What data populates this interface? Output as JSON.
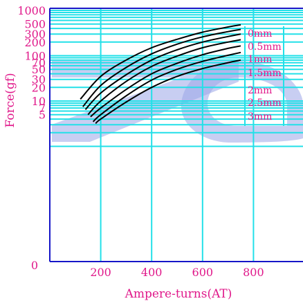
{
  "chart_data": {
    "type": "line",
    "title": "",
    "xlabel": "Ampere-turns(AT)",
    "ylabel": "Force(gf)",
    "xlim": [
      0,
      1000
    ],
    "x_scale": "linear",
    "y_scale": "log",
    "grid": true,
    "colors": {
      "grid": "#22e0e8",
      "axis": "#1515c8",
      "text": "#e0188a",
      "curve": "#000000",
      "watermark": "#9aa6e8"
    },
    "x_ticks": [
      {
        "value": 0,
        "label": "0"
      },
      {
        "value": 200,
        "label": "200"
      },
      {
        "value": 400,
        "label": "400"
      },
      {
        "value": 600,
        "label": "600"
      },
      {
        "value": 800,
        "label": "800"
      }
    ],
    "y_ticks": [
      {
        "value": 5,
        "label": "5"
      },
      {
        "value": 7,
        "label": "7"
      },
      {
        "value": 10,
        "label": "10"
      },
      {
        "value": 20,
        "label": "20"
      },
      {
        "value": 30,
        "label": "30"
      },
      {
        "value": 50,
        "label": "50"
      },
      {
        "value": 70,
        "label": "70"
      },
      {
        "value": 100,
        "label": "100"
      },
      {
        "value": 200,
        "label": "200"
      },
      {
        "value": 300,
        "label": "300"
      },
      {
        "value": 500,
        "label": "500"
      },
      {
        "value": 1000,
        "label": "1000"
      }
    ],
    "y_zero_label": "0",
    "series": [
      {
        "name": "0mm",
        "x": [
          120,
          200,
          300,
          400,
          500,
          600,
          700,
          750
        ],
        "y": [
          11,
          35,
          80,
          150,
          230,
          330,
          430,
          480
        ]
      },
      {
        "name": "0.5mm",
        "x": [
          130,
          200,
          300,
          400,
          500,
          600,
          700,
          750
        ],
        "y": [
          7.5,
          22,
          55,
          110,
          180,
          260,
          340,
          380
        ]
      },
      {
        "name": "1mm",
        "x": [
          140,
          200,
          300,
          400,
          500,
          600,
          700,
          750
        ],
        "y": [
          6.5,
          15,
          38,
          80,
          135,
          200,
          265,
          300
        ]
      },
      {
        "name": "1.5mm",
        "x": [
          150,
          200,
          300,
          400,
          500,
          600,
          700,
          750
        ],
        "y": [
          5,
          10,
          27,
          58,
          98,
          150,
          200,
          225
        ]
      },
      {
        "name": "2mm",
        "x": [
          160,
          200,
          300,
          400,
          500,
          600,
          700,
          750
        ],
        "y": [
          4.5,
          7,
          18,
          40,
          68,
          105,
          145,
          165
        ]
      },
      {
        "name": "2.5mm",
        "x": [
          170,
          200,
          300,
          400,
          500,
          600,
          700,
          750
        ],
        "y": [
          3.5,
          5,
          13,
          29,
          50,
          75,
          102,
          118
        ]
      },
      {
        "name": "3mm",
        "x": [
          180,
          200,
          300,
          400,
          500,
          600,
          700,
          750
        ],
        "y": [
          3.2,
          4,
          9.5,
          20,
          35,
          52,
          70,
          80
        ]
      }
    ]
  }
}
